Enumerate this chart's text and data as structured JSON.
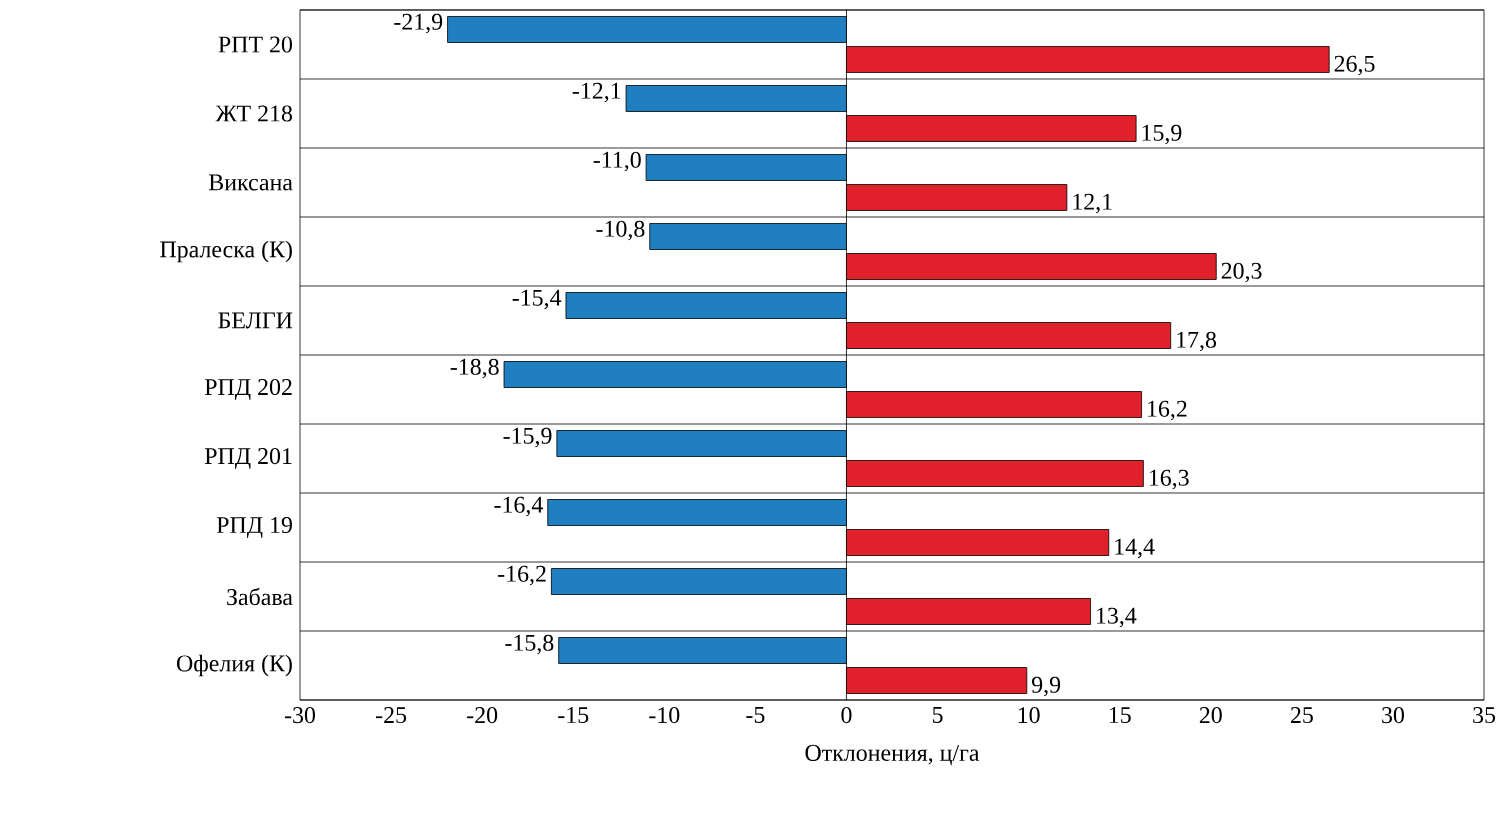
{
  "chart_data": {
    "type": "bar",
    "orientation": "horizontal",
    "xlabel": "Отклонения, ц/га",
    "categories": [
      "РПТ 20",
      "ЖТ 218",
      "Виксана",
      "Пралеска (К)",
      "БЕЛГИ",
      "РПД 202",
      "РПД 201",
      "РПД 19",
      "Забава",
      "Офелия (К)"
    ],
    "series": [
      {
        "color": "#1f7fc0",
        "values": [
          -21.9,
          -12.1,
          -11.0,
          -10.8,
          -15.4,
          -18.8,
          -15.9,
          -16.4,
          -16.2,
          -15.8
        ],
        "value_labels": [
          "-21,9",
          "-12,1",
          "-11,0",
          "-10,8",
          "-15,4",
          "-18,8",
          "-15,9",
          "-16,4",
          "-16,2",
          "-15,8"
        ]
      },
      {
        "color": "#e0202a",
        "values": [
          26.5,
          15.9,
          12.1,
          20.3,
          17.8,
          16.2,
          16.3,
          14.4,
          13.4,
          9.9
        ],
        "value_labels": [
          "26,5",
          "15,9",
          "12,1",
          "20,3",
          "17,8",
          "16,2",
          "16,3",
          "14,4",
          "13,4",
          "9,9"
        ]
      }
    ],
    "xlim": [
      -30,
      35
    ],
    "xticks": [
      -30,
      -25,
      -20,
      -15,
      -10,
      -5,
      0,
      5,
      10,
      15,
      20,
      25,
      30,
      35
    ],
    "grid": "y",
    "ref_lines": [
      {
        "axis": "x",
        "value": 0
      }
    ]
  }
}
